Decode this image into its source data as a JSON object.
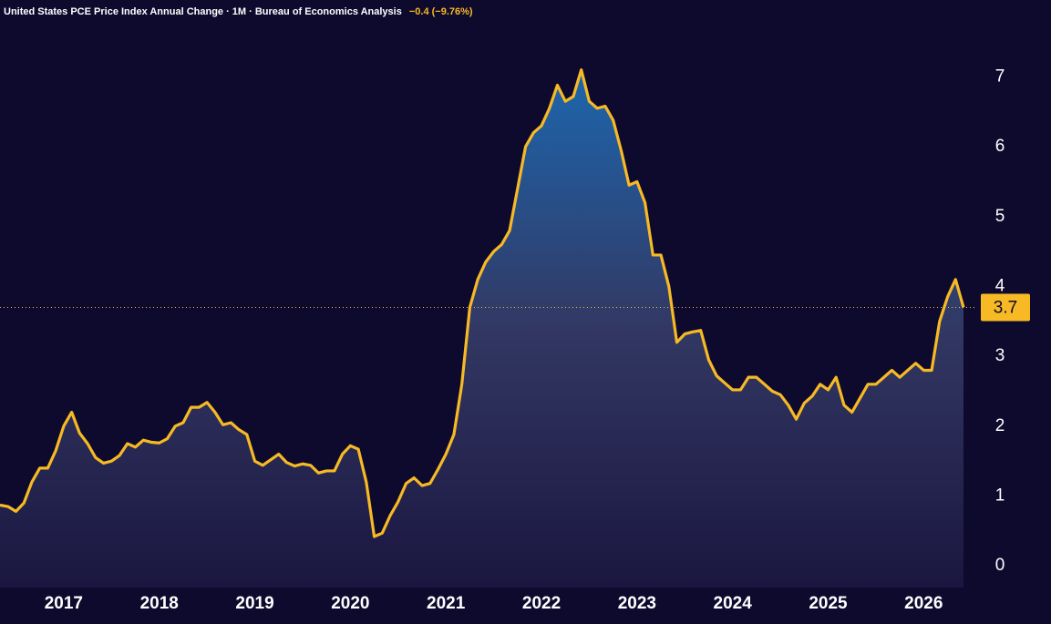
{
  "chart_data": {
    "type": "area",
    "title": "United States PCE Price Index Annual Change · 1M · Bureau of Economics Analysis",
    "change": "−0.4 (−9.76%)",
    "x": [
      "2016-05",
      "2016-06",
      "2016-07",
      "2016-08",
      "2016-09",
      "2016-10",
      "2016-11",
      "2016-12",
      "2017-01",
      "2017-02",
      "2017-03",
      "2017-04",
      "2017-05",
      "2017-06",
      "2017-07",
      "2017-08",
      "2017-09",
      "2017-10",
      "2017-11",
      "2017-12",
      "2018-01",
      "2018-02",
      "2018-03",
      "2018-04",
      "2018-05",
      "2018-06",
      "2018-07",
      "2018-08",
      "2018-09",
      "2018-10",
      "2018-11",
      "2018-12",
      "2019-01",
      "2019-02",
      "2019-03",
      "2019-04",
      "2019-05",
      "2019-06",
      "2019-07",
      "2019-08",
      "2019-09",
      "2019-10",
      "2019-11",
      "2019-12",
      "2020-01",
      "2020-02",
      "2020-03",
      "2020-04",
      "2020-05",
      "2020-06",
      "2020-07",
      "2020-08",
      "2020-09",
      "2020-10",
      "2020-11",
      "2020-12",
      "2021-01",
      "2021-02",
      "2021-03",
      "2021-04",
      "2021-05",
      "2021-06",
      "2021-07",
      "2021-08",
      "2021-09",
      "2021-10",
      "2021-11",
      "2021-12",
      "2022-01",
      "2022-02",
      "2022-03",
      "2022-04",
      "2022-05",
      "2022-06",
      "2022-07",
      "2022-08",
      "2022-09",
      "2022-10",
      "2022-11",
      "2022-12",
      "2023-01",
      "2023-02",
      "2023-03",
      "2023-04",
      "2023-05",
      "2023-06",
      "2023-07",
      "2023-08",
      "2023-09",
      "2023-10",
      "2023-11",
      "2023-12",
      "2024-01",
      "2024-02",
      "2024-03",
      "2024-04",
      "2024-05",
      "2024-06",
      "2024-07",
      "2024-08",
      "2024-09",
      "2024-10",
      "2024-11",
      "2024-12",
      "2025-01",
      "2025-02",
      "2025-03",
      "2025-04",
      "2025-05",
      "2025-06",
      "2025-07",
      "2025-08",
      "2025-09",
      "2025-10",
      "2025-11",
      "2025-12",
      "2026-01",
      "2026-02",
      "2026-03",
      "2026-04",
      "2026-05",
      "2026-06"
    ],
    "series": [
      {
        "name": "PCE Price Index Annual Change",
        "color": "#f7b924",
        "values": [
          0.87,
          0.85,
          0.78,
          0.9,
          1.2,
          1.4,
          1.4,
          1.65,
          2.0,
          2.2,
          1.9,
          1.75,
          1.55,
          1.47,
          1.5,
          1.58,
          1.75,
          1.7,
          1.8,
          1.77,
          1.76,
          1.82,
          2.0,
          2.05,
          2.27,
          2.27,
          2.34,
          2.2,
          2.02,
          2.05,
          1.95,
          1.88,
          1.5,
          1.44,
          1.52,
          1.6,
          1.48,
          1.43,
          1.46,
          1.44,
          1.33,
          1.36,
          1.36,
          1.6,
          1.72,
          1.67,
          1.2,
          0.42,
          0.47,
          0.72,
          0.92,
          1.18,
          1.26,
          1.15,
          1.18,
          1.38,
          1.6,
          1.88,
          2.6,
          3.7,
          4.1,
          4.35,
          4.5,
          4.6,
          4.8,
          5.4,
          6.0,
          6.2,
          6.3,
          6.55,
          6.88,
          6.65,
          6.72,
          7.1,
          6.65,
          6.55,
          6.58,
          6.38,
          5.95,
          5.45,
          5.5,
          5.2,
          4.45,
          4.45,
          4.0,
          3.2,
          3.32,
          3.35,
          3.37,
          2.95,
          2.72,
          2.62,
          2.52,
          2.52,
          2.7,
          2.7,
          2.6,
          2.5,
          2.45,
          2.3,
          2.1,
          2.33,
          2.43,
          2.6,
          2.52,
          2.7,
          2.3,
          2.2,
          2.4,
          2.6,
          2.6,
          2.7,
          2.8,
          2.7,
          2.8,
          2.9,
          2.8,
          2.8,
          3.5,
          3.85,
          4.1,
          3.7
        ]
      }
    ],
    "xlim": [
      "2016-05",
      "2026-06"
    ],
    "xticks": [
      {
        "value": "2017-01",
        "label": "2017"
      },
      {
        "value": "2018-01",
        "label": "2018"
      },
      {
        "value": "2019-01",
        "label": "2019"
      },
      {
        "value": "2020-01",
        "label": "2020"
      },
      {
        "value": "2021-01",
        "label": "2021"
      },
      {
        "value": "2022-01",
        "label": "2022"
      },
      {
        "value": "2023-01",
        "label": "2023"
      },
      {
        "value": "2024-01",
        "label": "2024"
      },
      {
        "value": "2025-01",
        "label": "2025"
      },
      {
        "value": "2026-01",
        "label": "2026"
      }
    ],
    "ylim": [
      -0.31,
      8.1
    ],
    "yticks": [
      0,
      1,
      2,
      3,
      4,
      5,
      6,
      7
    ],
    "grid": false
  }
}
